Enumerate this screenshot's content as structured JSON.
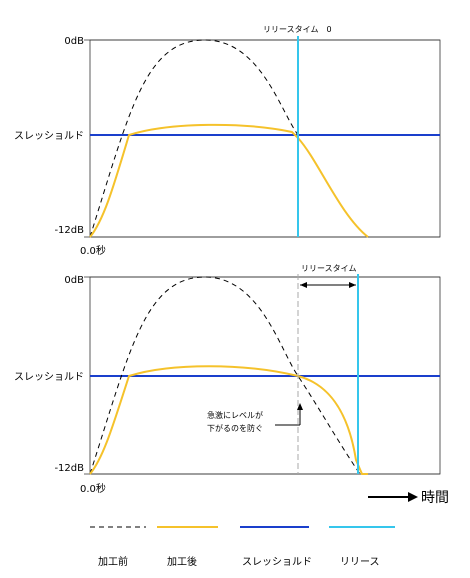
{
  "panel_top": {
    "y_top_label": "0dB",
    "y_mid_label": "スレッショルド",
    "y_bottom_label": "-12dB",
    "x_start_label": "0.0秒",
    "release_label": "リリースタイム　0"
  },
  "panel_bottom": {
    "y_top_label": "0dB",
    "y_mid_label": "スレッショルド",
    "y_bottom_label": "-12dB",
    "x_start_label": "0.0秒",
    "release_label": "リリースタイム",
    "annotation_line1": "急激にレベルが",
    "annotation_line2": "下がるのを防ぐ"
  },
  "time_axis_label": "時間",
  "legend": [
    {
      "label": "加工前",
      "color": "#000000",
      "style": "dashed"
    },
    {
      "label": "加工後",
      "color": "#f5c22b",
      "style": "solid"
    },
    {
      "label": "スレッショルド",
      "color": "#1a3fcc",
      "style": "solid"
    },
    {
      "label": "リリース",
      "color": "#35c6ec",
      "style": "solid"
    }
  ],
  "colors": {
    "before": "#000000",
    "after": "#f5c22b",
    "threshold": "#1a3fcc",
    "release": "#35c6ec",
    "guide": "#aaaaaa"
  }
}
